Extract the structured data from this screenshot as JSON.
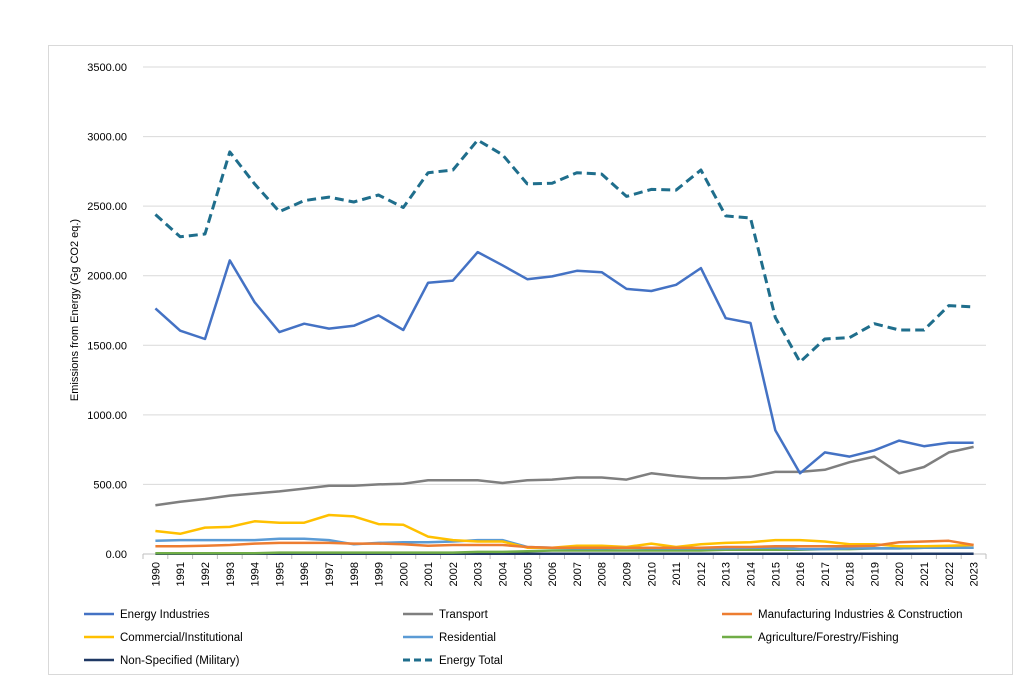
{
  "chart_data": {
    "type": "line",
    "title": "",
    "xlabel": "",
    "ylabel": "Emissions from Energy (Gg CO2 eq.)",
    "ylim": [
      0,
      3500
    ],
    "yticks": [
      "0.00",
      "500.00",
      "1000.00",
      "1500.00",
      "2000.00",
      "2500.00",
      "3000.00",
      "3500.00"
    ],
    "grid": true,
    "legend_position": "bottom",
    "x": [
      "1990",
      "1991",
      "1992",
      "1993",
      "1994",
      "1995",
      "1996",
      "1997",
      "1998",
      "1999",
      "2000",
      "2001",
      "2002",
      "2003",
      "2004",
      "2005",
      "2006",
      "2007",
      "2008",
      "2009",
      "2010",
      "2011",
      "2012",
      "2013",
      "2014",
      "2015",
      "2016",
      "2017",
      "2018",
      "2019",
      "2020",
      "2021",
      "2022",
      "2023"
    ],
    "series": [
      {
        "name": "Energy Industries",
        "color": "#4472c4",
        "dash": false,
        "values": [
          1765,
          1605,
          1545,
          2110,
          1810,
          1595,
          1655,
          1620,
          1640,
          1715,
          1610,
          1950,
          1965,
          2170,
          2075,
          1975,
          1995,
          2035,
          2025,
          1905,
          1890,
          1935,
          2055,
          1695,
          1660,
          890,
          580,
          730,
          700,
          745,
          815,
          775,
          800,
          800
        ]
      },
      {
        "name": "Transport",
        "color": "#7f7f7f",
        "dash": false,
        "values": [
          350,
          375,
          395,
          420,
          435,
          450,
          470,
          490,
          490,
          500,
          505,
          530,
          530,
          530,
          510,
          530,
          535,
          550,
          550,
          535,
          580,
          560,
          545,
          545,
          555,
          590,
          590,
          605,
          660,
          700,
          580,
          625,
          730,
          770
        ]
      },
      {
        "name": "Manufacturing Industries & Construction",
        "color": "#ed7d31",
        "dash": false,
        "values": [
          55,
          55,
          60,
          65,
          75,
          80,
          80,
          80,
          75,
          75,
          70,
          60,
          65,
          65,
          65,
          50,
          45,
          45,
          45,
          45,
          45,
          45,
          45,
          50,
          50,
          55,
          55,
          55,
          55,
          60,
          85,
          90,
          95,
          65
        ]
      },
      {
        "name": "Commercial/Institutional",
        "color": "#ffc000",
        "dash": false,
        "values": [
          165,
          145,
          190,
          195,
          235,
          225,
          225,
          280,
          270,
          215,
          210,
          125,
          100,
          90,
          90,
          45,
          45,
          60,
          60,
          50,
          75,
          50,
          70,
          80,
          85,
          100,
          100,
          90,
          70,
          70,
          55,
          55,
          60,
          65
        ]
      },
      {
        "name": "Residential",
        "color": "#5b9bd5",
        "dash": false,
        "values": [
          95,
          100,
          100,
          100,
          100,
          110,
          110,
          100,
          70,
          80,
          85,
          85,
          90,
          100,
          100,
          50,
          45,
          40,
          40,
          45,
          40,
          40,
          40,
          40,
          45,
          45,
          35,
          35,
          40,
          40,
          40,
          45,
          45,
          45
        ]
      },
      {
        "name": "Agriculture/Forestry/Fishing",
        "color": "#70ad47",
        "dash": false,
        "values": [
          5,
          5,
          5,
          5,
          5,
          10,
          10,
          10,
          10,
          10,
          10,
          10,
          10,
          15,
          15,
          20,
          25,
          25,
          25,
          25,
          25,
          25,
          25,
          30,
          30,
          30,
          30,
          35,
          35,
          40,
          40,
          45,
          45,
          45
        ]
      },
      {
        "name": "Non-Specified (Military)",
        "color": "#1f3864",
        "dash": false,
        "values": [
          2,
          2,
          2,
          2,
          2,
          2,
          2,
          2,
          2,
          2,
          2,
          2,
          2,
          2,
          2,
          2,
          2,
          2,
          2,
          2,
          2,
          2,
          2,
          2,
          2,
          2,
          2,
          2,
          2,
          2,
          2,
          2,
          2,
          2
        ]
      },
      {
        "name": "Energy Total",
        "color": "#1f6e8c",
        "dash": true,
        "values": [
          2440,
          2280,
          2300,
          2890,
          2660,
          2460,
          2540,
          2565,
          2530,
          2580,
          2490,
          2740,
          2760,
          2975,
          2870,
          2660,
          2665,
          2740,
          2730,
          2570,
          2620,
          2615,
          2760,
          2430,
          2415,
          1700,
          1380,
          1545,
          1555,
          1655,
          1610,
          1610,
          1785,
          1775
        ]
      }
    ]
  }
}
